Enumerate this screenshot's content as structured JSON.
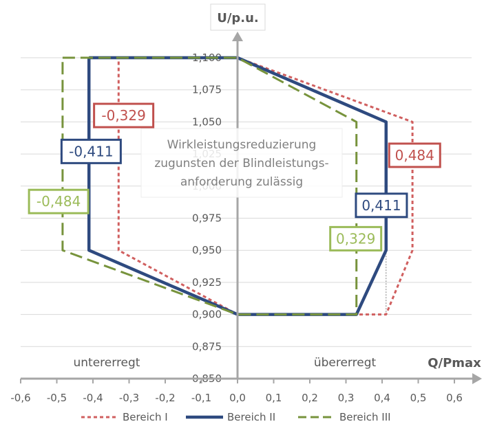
{
  "chart_data": {
    "type": "line",
    "xlabel": "Q/Pmax",
    "ylabel": "U/p.u.",
    "xlim": [
      -0.6,
      0.6
    ],
    "ylim": [
      0.85,
      1.1
    ],
    "x_ticks": [
      "-0,6",
      "-0,5",
      "-0,4",
      "-0,3",
      "-0,2",
      "-0,1",
      "0,0",
      "0,1",
      "0,2",
      "0,3",
      "0,4",
      "0,5",
      "0,6"
    ],
    "y_ticks": [
      "0,850",
      "0,875",
      "0,900",
      "0,925",
      "0,950",
      "0,975",
      "1,000",
      "1,025",
      "1,050",
      "1,075",
      "1,100"
    ],
    "grid": true,
    "legend_position": "bottom",
    "series": [
      {
        "name": "Bereich I",
        "color": "#d05f5f",
        "style": "dotted",
        "points": [
          [
            -0.329,
            1.1
          ],
          [
            0,
            1.1
          ],
          [
            0.484,
            1.05
          ],
          [
            0.484,
            0.95
          ],
          [
            0.411,
            0.9
          ],
          [
            0,
            0.9
          ],
          [
            -0.329,
            0.95
          ],
          [
            -0.329,
            1.1
          ]
        ]
      },
      {
        "name": "Bereich II",
        "color": "#2e4a7f",
        "style": "solid",
        "points": [
          [
            -0.411,
            1.1
          ],
          [
            0,
            1.1
          ],
          [
            0.411,
            1.05
          ],
          [
            0.411,
            0.95
          ],
          [
            0.329,
            0.9
          ],
          [
            0,
            0.9
          ],
          [
            -0.411,
            0.95
          ],
          [
            -0.411,
            1.1
          ]
        ]
      },
      {
        "name": "Bereich III",
        "color": "#77933c",
        "style": "dashed",
        "points": [
          [
            -0.484,
            1.1
          ],
          [
            0,
            1.1
          ],
          [
            0.329,
            1.05
          ],
          [
            0.329,
            0.9
          ],
          [
            0,
            0.9
          ],
          [
            -0.484,
            0.95
          ],
          [
            -0.484,
            1.1
          ]
        ]
      }
    ],
    "helper_lines": [
      {
        "color": "#7f7f7f",
        "points": [
          [
            0.411,
            0.95
          ],
          [
            0.411,
            0.9
          ]
        ]
      }
    ],
    "data_labels": [
      {
        "text": "-0,329",
        "color": "#c0504d",
        "x": -0.315,
        "y": 1.055
      },
      {
        "text": "-0,411",
        "color": "#2e4a7f",
        "x": -0.405,
        "y": 1.027
      },
      {
        "text": "-0,484",
        "color": "#9bbb59",
        "x": -0.495,
        "y": 0.988
      },
      {
        "text": "0,484",
        "color": "#c0504d",
        "x": 0.49,
        "y": 1.024
      },
      {
        "text": "0,411",
        "color": "#2e4a7f",
        "x": 0.398,
        "y": 0.985
      },
      {
        "text": "0,329",
        "color": "#9bbb59",
        "x": 0.327,
        "y": 0.959
      }
    ],
    "annotations": {
      "note_lines": [
        "Wirkleistungsreduzierung",
        "zugunsten der Blindleistungs-",
        "anforderung zulässig"
      ],
      "left_region": "untererregt",
      "right_region": "übererregt"
    }
  }
}
